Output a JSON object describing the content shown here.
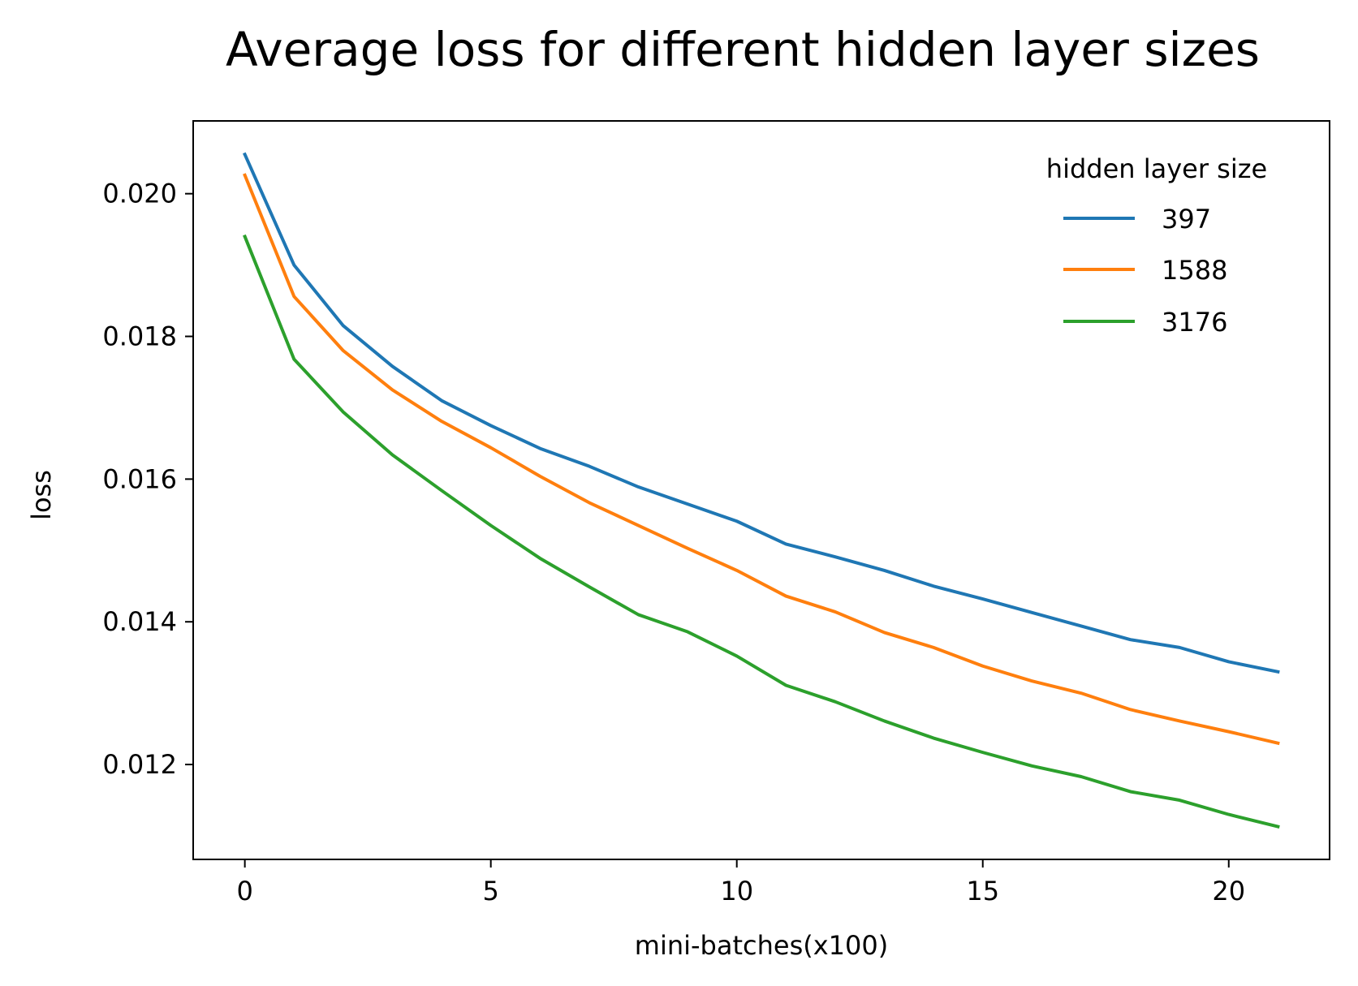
{
  "chart_data": {
    "type": "line",
    "title": "Average loss for different hidden layer sizes",
    "xlabel": "mini-batches(x100)",
    "ylabel": "loss",
    "xlim": [
      -1.05,
      22.05
    ],
    "ylim": [
      0.01067,
      0.02102
    ],
    "xticks": [
      0,
      5,
      10,
      15,
      20
    ],
    "xtick_labels": [
      "0",
      "5",
      "10",
      "15",
      "20"
    ],
    "yticks": [
      0.012,
      0.014,
      0.016,
      0.018,
      0.02
    ],
    "ytick_labels": [
      "0.012",
      "0.014",
      "0.016",
      "0.018",
      "0.020"
    ],
    "grid": false,
    "legend": {
      "title": "hidden layer size",
      "placement": "top-right"
    },
    "x": [
      0,
      1,
      2,
      3,
      4,
      5,
      6,
      7,
      8,
      9,
      10,
      11,
      12,
      13,
      14,
      15,
      16,
      17,
      18,
      19,
      20,
      21
    ],
    "series": [
      {
        "name": "397",
        "color": "#1f77b4",
        "values": [
          0.02055,
          0.019,
          0.01815,
          0.01758,
          0.0171,
          0.01675,
          0.01643,
          0.01618,
          0.01589,
          0.01565,
          0.01541,
          0.01509,
          0.01491,
          0.01472,
          0.0145,
          0.01432,
          0.01413,
          0.01394,
          0.01375,
          0.01364,
          0.01344,
          0.0133
        ]
      },
      {
        "name": "1588",
        "color": "#ff7f0e",
        "values": [
          0.02026,
          0.01856,
          0.0178,
          0.01725,
          0.01681,
          0.01644,
          0.01604,
          0.01567,
          0.01535,
          0.01503,
          0.01472,
          0.01436,
          0.01414,
          0.01385,
          0.01364,
          0.01338,
          0.01317,
          0.013,
          0.01277,
          0.01261,
          0.01246,
          0.0123
        ]
      },
      {
        "name": "3176",
        "color": "#2ca02c",
        "values": [
          0.0194,
          0.01768,
          0.01694,
          0.01634,
          0.01584,
          0.01535,
          0.01489,
          0.01449,
          0.0141,
          0.01386,
          0.01352,
          0.01311,
          0.01288,
          0.01261,
          0.01237,
          0.01217,
          0.01198,
          0.01183,
          0.01162,
          0.0115,
          0.0113,
          0.01113
        ]
      }
    ]
  }
}
